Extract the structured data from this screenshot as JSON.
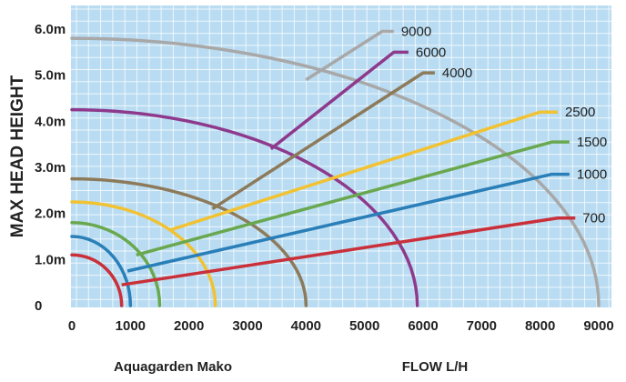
{
  "chart_data": {
    "type": "line",
    "ylabel": "MAX HEAD HEIGHT",
    "xlabel": "FLOW L/H",
    "caption": "Aquagarden Mako",
    "x_ticks": [
      "0",
      "1000",
      "2000",
      "3000",
      "4000",
      "5000",
      "6000",
      "7000",
      "8000",
      "9000"
    ],
    "y_ticks": [
      "0",
      "1.0m",
      "2.0m",
      "3.0m",
      "4.0m",
      "5.0m",
      "6.0m"
    ],
    "xlim": [
      0,
      9000
    ],
    "ylim": [
      0,
      6.2
    ],
    "grid": true,
    "background_color": "#b9dcf2",
    "grid_color": "#ffffff",
    "series": [
      {
        "name": "9000",
        "color": "#a8a8a8",
        "max_head": 5.8,
        "max_flow": 9000,
        "label_line": [
          [
            4000,
            4.9
          ],
          [
            5300,
            5.95
          ],
          [
            5500,
            5.95
          ]
        ]
      },
      {
        "name": "6000",
        "color": "#8e3a8c",
        "max_head": 4.25,
        "max_flow": 5900,
        "label_line": [
          [
            3400,
            3.4
          ],
          [
            5500,
            5.5
          ],
          [
            5750,
            5.5
          ]
        ]
      },
      {
        "name": "4000",
        "color": "#8c7a5a",
        "max_head": 2.75,
        "max_flow": 4000,
        "label_line": [
          [
            2400,
            2.1
          ],
          [
            6000,
            5.05
          ],
          [
            6200,
            5.05
          ]
        ]
      },
      {
        "name": "2500",
        "color": "#f1c232",
        "max_head": 2.25,
        "max_flow": 2450,
        "label_line": [
          [
            1700,
            1.65
          ],
          [
            8000,
            4.2
          ],
          [
            8300,
            4.2
          ]
        ]
      },
      {
        "name": "1500",
        "color": "#69a84f",
        "max_head": 1.8,
        "max_flow": 1500,
        "label_line": [
          [
            1100,
            1.1
          ],
          [
            8200,
            3.55
          ],
          [
            8500,
            3.55
          ]
        ]
      },
      {
        "name": "1000",
        "color": "#2a7fb8",
        "max_head": 1.5,
        "max_flow": 1000,
        "label_line": [
          [
            950,
            0.75
          ],
          [
            8200,
            2.85
          ],
          [
            8500,
            2.85
          ]
        ]
      },
      {
        "name": "700",
        "color": "#c9303a",
        "max_head": 1.1,
        "max_flow": 850,
        "label_line": [
          [
            850,
            0.45
          ],
          [
            8300,
            1.9
          ],
          [
            8600,
            1.9
          ]
        ]
      }
    ]
  }
}
